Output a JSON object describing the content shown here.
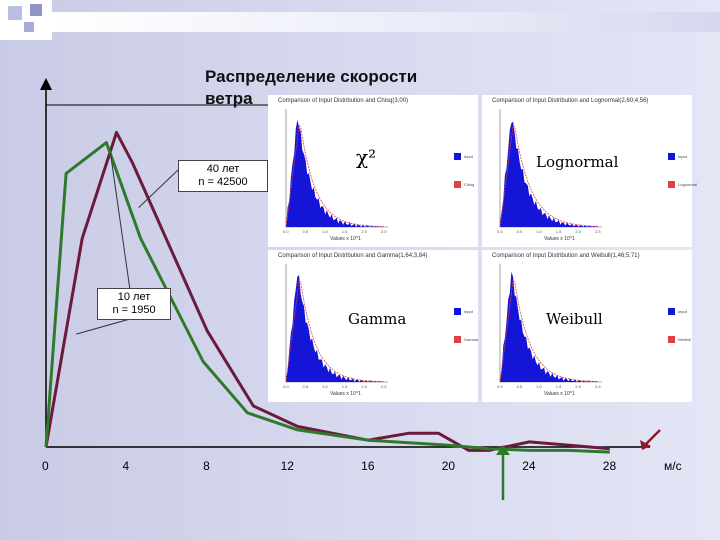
{
  "chart_data": {
    "type": "line",
    "title": "Распределение скорости ветра",
    "x_ticks": [
      "0",
      "4",
      "8",
      "12",
      "16",
      "20",
      "24",
      "28"
    ],
    "x_unit": "м/с",
    "xlim": [
      0,
      29.5
    ],
    "ylim": [
      0,
      1
    ],
    "series": [
      {
        "name": "40 лет n = 42500",
        "color": "#6b1a3c",
        "x": [
          0,
          1.8,
          3.5,
          4.3,
          8,
          10.3,
          12.5,
          16,
          18,
          19.5,
          21,
          22,
          24,
          26,
          28
        ],
        "y": [
          0.0,
          0.61,
          0.92,
          0.83,
          0.34,
          0.12,
          0.06,
          0.02,
          0.04,
          0.04,
          -0.01,
          -0.01,
          0.015,
          0.005,
          -0.005
        ]
      },
      {
        "name": "10 лет n = 1950",
        "color": "#2e7a2a",
        "x": [
          0,
          1,
          3,
          4.7,
          7.8,
          10,
          12.5,
          16,
          20,
          22,
          24,
          26,
          28
        ],
        "y": [
          0.0,
          0.8,
          0.89,
          0.61,
          0.25,
          0.1,
          0.05,
          0.02,
          0.005,
          -0.005,
          -0.01,
          -0.01,
          -0.015
        ]
      }
    ],
    "callouts": {
      "long": "40 лет\nn = 42500",
      "short": "10 лет\nn = 1950"
    }
  },
  "panels": [
    {
      "title": "Comparison of Input Distribution and Chisq(3,00)",
      "label": "χ²",
      "xlabel": "Values x 10^1",
      "ticks": [
        "0.0",
        "0.5",
        "1.0",
        "1.5",
        "2.0",
        "2.5"
      ],
      "legend": [
        "Input",
        "Chisq"
      ]
    },
    {
      "title": "Comparison of Input Distribution and Lognormal(2,60;4,56)",
      "label": "Lognormal",
      "xlabel": "Values x 10^1",
      "ticks": [
        "0.0",
        "0.5",
        "1.0",
        "1.5",
        "2.0",
        "2.5"
      ],
      "legend": [
        "Input",
        "Lognormal"
      ]
    },
    {
      "title": "Comparison of Input Distribution and Gamma(1,64;3,84)",
      "label": "Gamma",
      "xlabel": "Values x 10^1",
      "ticks": [
        "0.0",
        "0.5",
        "1.0",
        "1.5",
        "2.0",
        "2.5"
      ],
      "legend": [
        "Input",
        "Gamma"
      ]
    },
    {
      "title": "Comparison of Input Distribution and Weibull(1,46;5,71)",
      "label": "Weibull",
      "xlabel": "Values x 10^1",
      "ticks": [
        "0.0",
        "0.5",
        "1.0",
        "1.5",
        "2.0",
        "2.5"
      ],
      "legend": [
        "Input",
        "Weibull"
      ]
    }
  ],
  "colors": {
    "fill": "#1515d8",
    "fit": "#e04040",
    "arrow_green": "#2a7a2a",
    "arrow_red": "#8b1a2b"
  }
}
